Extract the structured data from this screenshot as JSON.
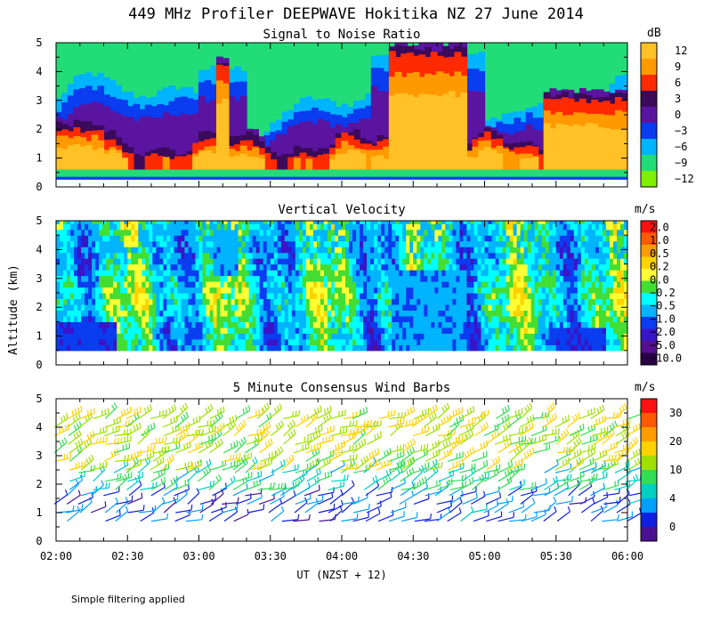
{
  "figure": {
    "title": "449 MHz Profiler DEEPWAVE Hokitika NZ 27 June 2014",
    "footnote": "Simple filtering applied",
    "ylabel": "Altitude (km)",
    "xlabel": "UT  (NZST + 12)"
  },
  "chart_data": [
    {
      "type": "heatmap",
      "title": "Signal to Noise Ratio",
      "units": "dB",
      "x_ticks": [
        "02:00",
        "02:30",
        "03:00",
        "03:30",
        "04:00",
        "04:30",
        "05:00",
        "05:30",
        "06:00"
      ],
      "y_ticks": [
        "0",
        "1",
        "2",
        "3",
        "4",
        "5"
      ],
      "xlim": [
        "02:00",
        "06:00"
      ],
      "ylim": [
        0,
        5
      ],
      "colorbar": {
        "labels": [
          "12",
          "9",
          "6",
          "3",
          "0",
          "−3",
          "−6",
          "−9",
          "−12"
        ],
        "colors": [
          "#ffc125",
          "#ff9900",
          "#ff2a00",
          "#3b0a5a",
          "#5a14a0",
          "#0a3cf0",
          "#00b4ff",
          "#22dd77",
          "#7ff000"
        ]
      },
      "features": [
        {
          "time_start": "02:00",
          "time_end": "02:20",
          "top_km": 3.4,
          "peak_top_km": 2.0
        },
        {
          "time_start": "02:40",
          "time_end": "02:42",
          "top_km": 2.0
        },
        {
          "time_start": "02:50",
          "time_end": "03:00",
          "top_km": 2.0
        },
        {
          "time_start": "03:07",
          "time_end": "03:12",
          "top_km": 4.5,
          "peak_top_km": 4.2
        },
        {
          "time_start": "03:40",
          "time_end": "03:45",
          "top_km": 2.2
        },
        {
          "time_start": "04:20",
          "time_end": "04:52",
          "top_km": 5.0,
          "peak_top_km": 4.6
        },
        {
          "time_start": "05:25",
          "time_end": "06:00",
          "top_km": 3.2,
          "peak_top_km": 3.0
        }
      ]
    },
    {
      "type": "heatmap",
      "title": "Vertical Velocity",
      "units": "m/s",
      "x_ticks": [
        "02:00",
        "02:30",
        "03:00",
        "03:30",
        "04:00",
        "04:30",
        "05:00",
        "05:30",
        "06:00"
      ],
      "y_ticks": [
        "0",
        "1",
        "2",
        "3",
        "4",
        "5"
      ],
      "xlim": [
        "02:00",
        "06:00"
      ],
      "ylim": [
        0,
        5
      ],
      "colorbar": {
        "labels": [
          "2.0",
          "1.0",
          "0.5",
          "0.2",
          "0.0",
          "−0.2",
          "−0.5",
          "−1.0",
          "−2.0",
          "−5.0",
          "−10.0"
        ],
        "colors": [
          "#ff1010",
          "#ff5a00",
          "#ff9c00",
          "#ffd200",
          "#ffff33",
          "#44dd33",
          "#00ffff",
          "#00b4ff",
          "#0a3cf0",
          "#3a14c8",
          "#55108f",
          "#2a0044"
        ]
      },
      "features": [
        {
          "time_start": "02:00",
          "time_end": "02:25",
          "bottom_km": 0.5,
          "top_km": 1.4,
          "value": "−2.0"
        },
        {
          "time_start": "03:05",
          "time_end": "03:15",
          "bottom_km": 3.0,
          "top_km": 4.7,
          "value": "−1.0"
        },
        {
          "time_start": "04:20",
          "time_end": "04:52",
          "bottom_km": 0.5,
          "top_km": 3.2,
          "value": "−1.0"
        },
        {
          "time_start": "05:30",
          "time_end": "05:50",
          "bottom_km": 0.5,
          "top_km": 1.2,
          "value": "−2.0"
        }
      ]
    },
    {
      "type": "scatter",
      "title": "5 Minute Consensus Wind Barbs",
      "units": "m/s",
      "x_ticks": [
        "02:00",
        "02:30",
        "03:00",
        "03:30",
        "04:00",
        "04:30",
        "05:00",
        "05:30",
        "06:00"
      ],
      "y_ticks": [
        "0",
        "1",
        "2",
        "3",
        "4",
        "5"
      ],
      "xlim": [
        "02:00",
        "06:00"
      ],
      "ylim": [
        0,
        5
      ],
      "colorbar": {
        "labels": [
          "30",
          "20",
          "10",
          "4",
          "0"
        ],
        "colors": [
          "#ff1010",
          "#ff5a00",
          "#ff9c00",
          "#ffd200",
          "#a0e000",
          "#33dd55",
          "#00d0c0",
          "#00a0ff",
          "#1020e0",
          "#4a1090"
        ]
      },
      "layers": [
        {
          "bottom_km": 0.7,
          "top_km": 1.8,
          "speed_ms": 5
        },
        {
          "bottom_km": 1.8,
          "top_km": 2.5,
          "speed_ms": 12
        },
        {
          "bottom_km": 2.5,
          "top_km": 4.5,
          "speed_ms": 18
        }
      ]
    }
  ]
}
